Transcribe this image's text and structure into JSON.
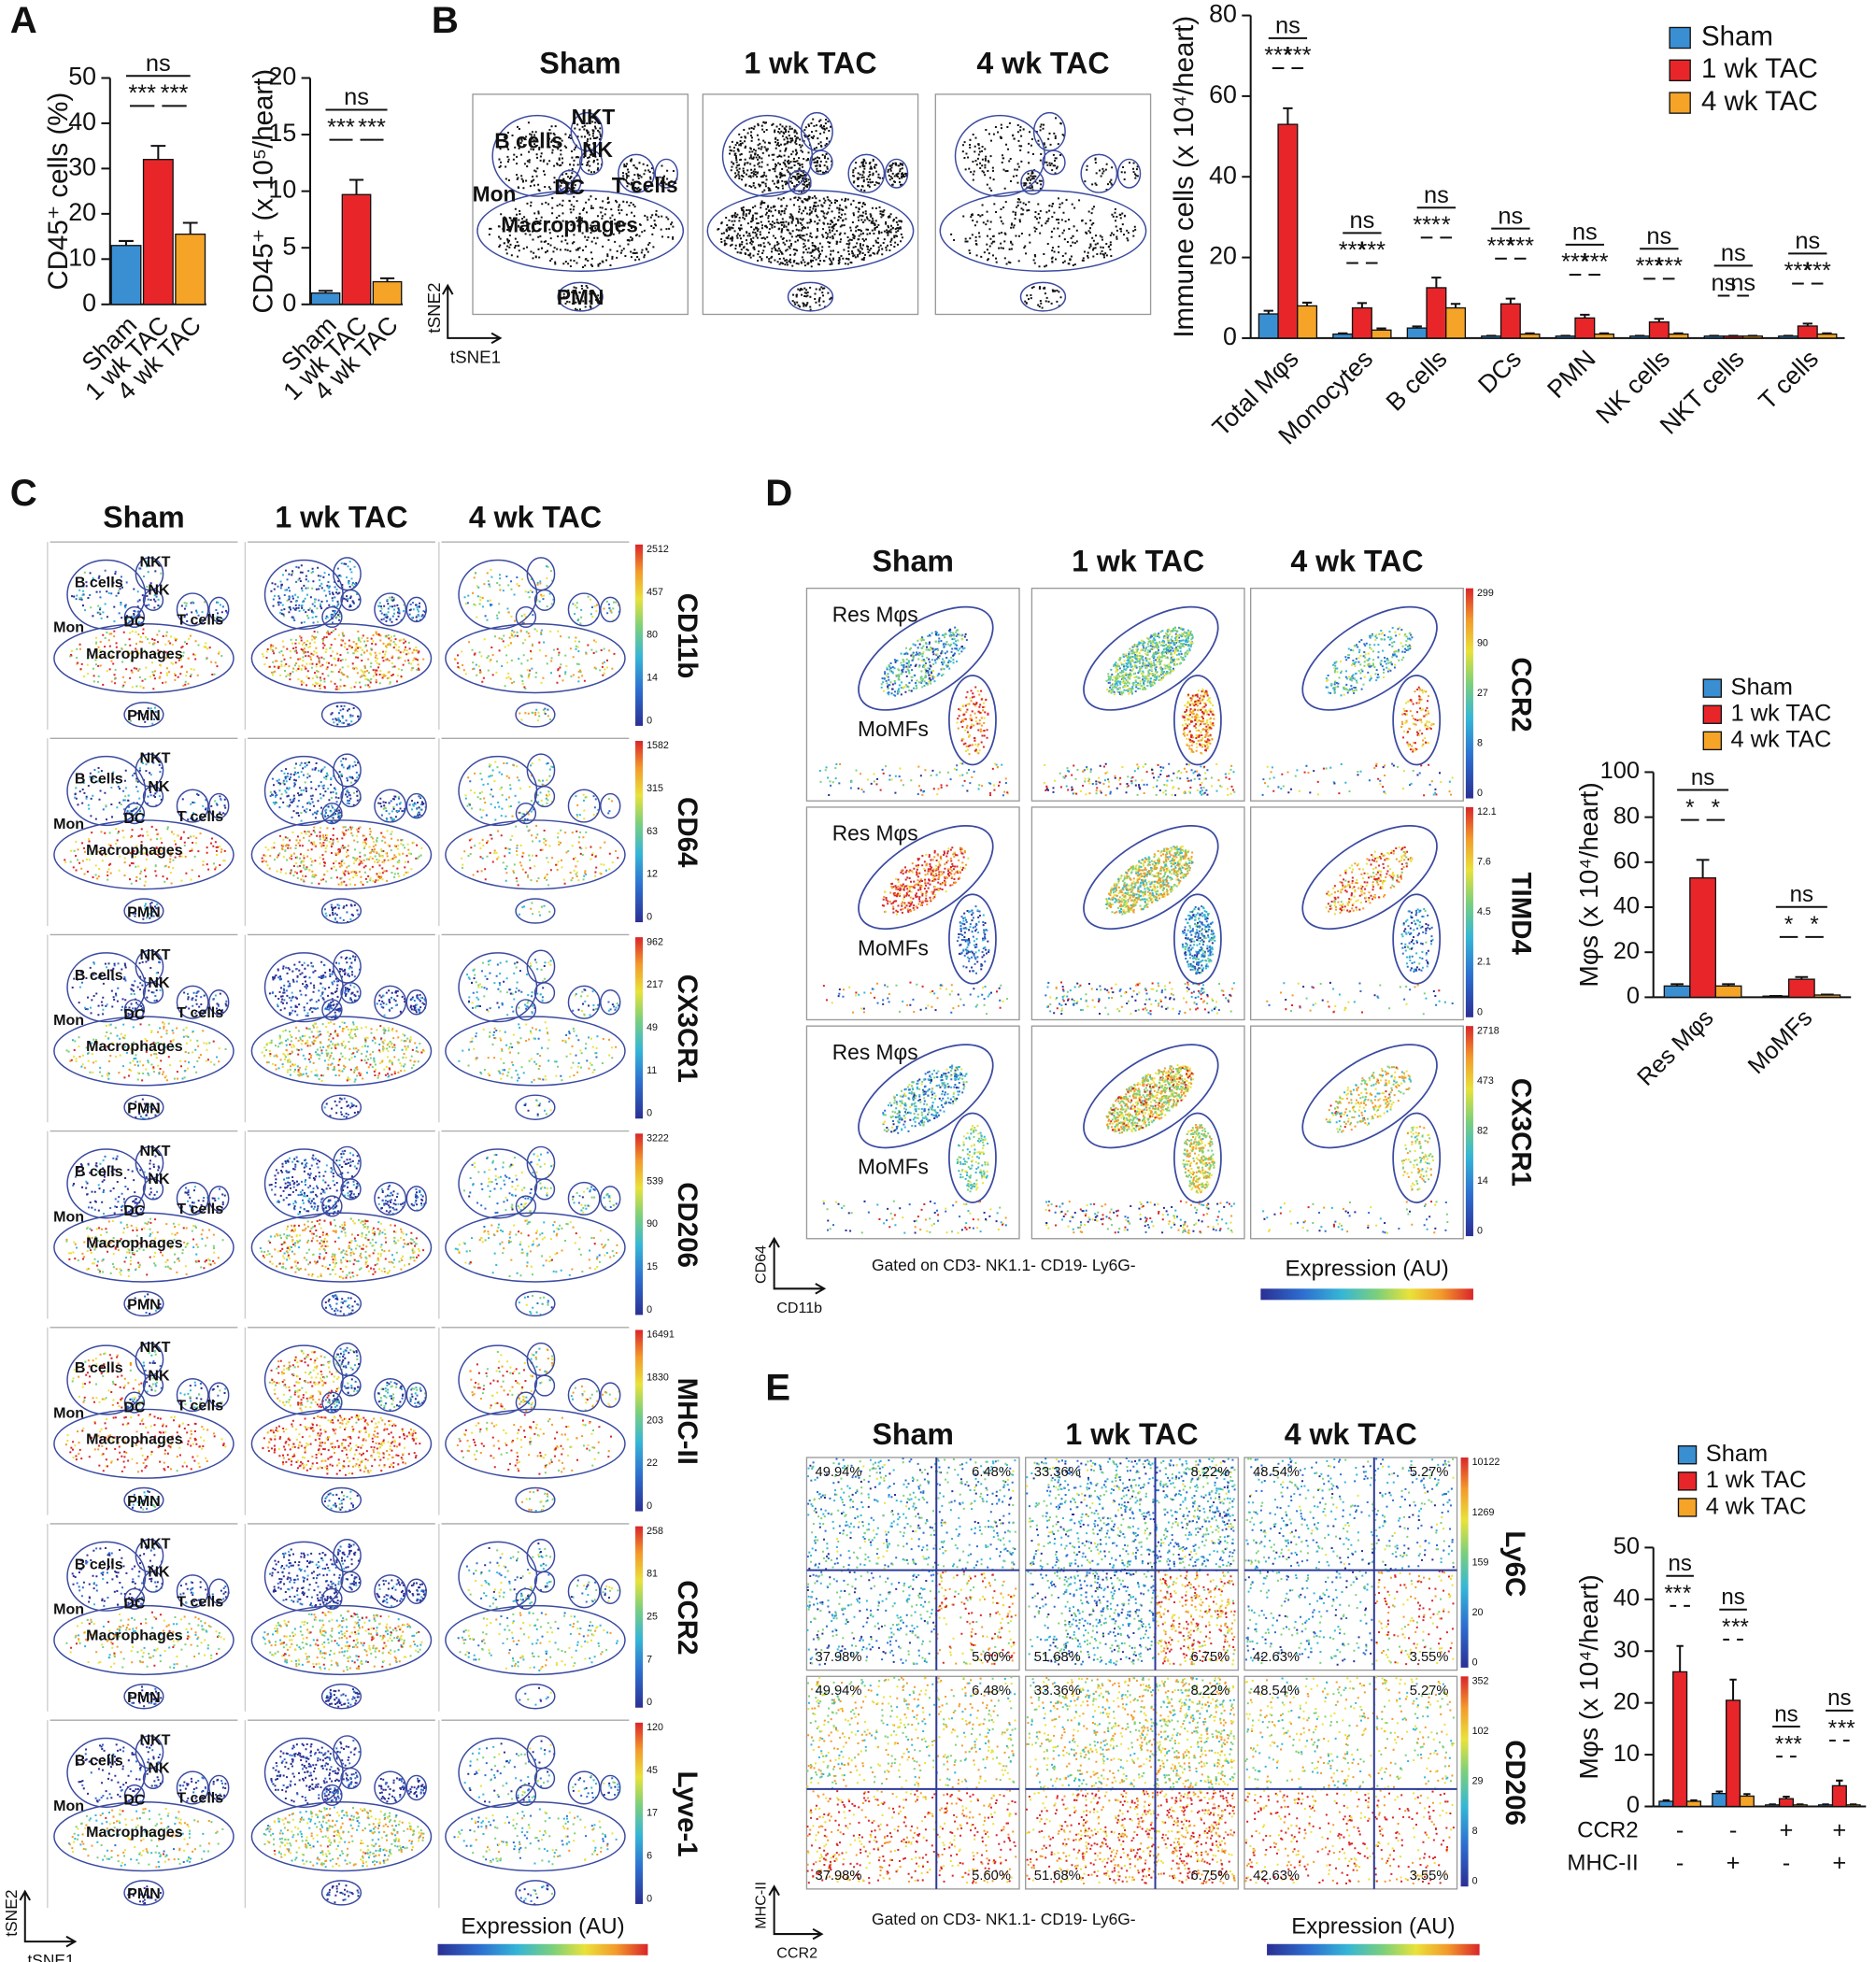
{
  "panel_labels": [
    "A",
    "B",
    "C",
    "D",
    "E"
  ],
  "chart_data": [
    {
      "type": "bar",
      "ylabel": "CD45⁺ cells (%)",
      "categories": [
        "Sham",
        "1 wk TAC",
        "4 wk TAC"
      ],
      "values": [
        13,
        32,
        15.5
      ],
      "errors": [
        1,
        3,
        2.5
      ],
      "colors": [
        "#3a8fd3",
        "#e8262a",
        "#f5a428"
      ],
      "ylim": [
        0,
        50
      ],
      "yticks": [
        0,
        10,
        20,
        30,
        40,
        50
      ],
      "significance": [
        "ns",
        "***",
        "***"
      ]
    },
    {
      "type": "bar",
      "ylabel": "CD45⁺ (x 10⁵/heart)",
      "categories": [
        "Sham",
        "1 wk TAC",
        "4 wk TAC"
      ],
      "values": [
        1,
        9.7,
        2
      ],
      "errors": [
        0.2,
        1.3,
        0.3
      ],
      "colors": [
        "#3a8fd3",
        "#e8262a",
        "#f5a428"
      ],
      "ylim": [
        0,
        20
      ],
      "yticks": [
        0,
        5,
        10,
        15,
        20
      ],
      "significance": [
        "ns",
        "***",
        "***"
      ]
    },
    {
      "type": "bar",
      "ylabel": "Immune cells (x 10⁴/heart)",
      "categories": [
        "Total Mφs",
        "Monocytes",
        "B cells",
        "DCs",
        "PMN",
        "NK cells",
        "NKT cells",
        "T cells"
      ],
      "series": [
        {
          "name": "Sham",
          "color": "#3a8fd3",
          "values": [
            6,
            1,
            2.5,
            0.5,
            0.5,
            0.5,
            0.5,
            0.5
          ],
          "errors": [
            0.8,
            0.2,
            0.4,
            0.1,
            0.1,
            0.1,
            0.1,
            0.1
          ]
        },
        {
          "name": "1 wk TAC",
          "color": "#e8262a",
          "values": [
            53,
            7.5,
            12.5,
            8.5,
            5,
            4,
            0.5,
            3
          ],
          "errors": [
            4,
            1.2,
            2.5,
            1.3,
            0.8,
            0.8,
            0.1,
            0.6
          ]
        },
        {
          "name": "4 wk TAC",
          "color": "#f5a428",
          "values": [
            8,
            2,
            7.5,
            1,
            1,
            1,
            0.5,
            1
          ],
          "errors": [
            0.8,
            0.4,
            1,
            0.2,
            0.2,
            0.2,
            0.1,
            0.2
          ]
        }
      ],
      "ylim": [
        0,
        80
      ],
      "yticks": [
        0,
        20,
        40,
        60,
        80
      ],
      "significance": [
        [
          "ns",
          "***",
          "***"
        ],
        [
          "ns",
          "***",
          "***"
        ],
        [
          "ns",
          "***",
          "*"
        ],
        [
          "ns",
          "***",
          "***"
        ],
        [
          "ns",
          "***",
          "***"
        ],
        [
          "ns",
          "***",
          "***"
        ],
        [
          "ns",
          "ns",
          "ns"
        ],
        [
          "ns",
          "***",
          "***"
        ]
      ]
    },
    {
      "type": "bar",
      "ylabel": "Mφs (x 10⁴/heart)",
      "categories": [
        "Res Mφs",
        "MoMFs"
      ],
      "series": [
        {
          "name": "Sham",
          "color": "#3a8fd3",
          "values": [
            5,
            0.5
          ],
          "errors": [
            0.8,
            0.1
          ]
        },
        {
          "name": "1 wk TAC",
          "color": "#e8262a",
          "values": [
            53,
            8
          ],
          "errors": [
            8,
            1
          ]
        },
        {
          "name": "4 wk TAC",
          "color": "#f5a428",
          "values": [
            5,
            1
          ],
          "errors": [
            0.8,
            0.2
          ]
        }
      ],
      "ylim": [
        0,
        100
      ],
      "yticks": [
        0,
        20,
        40,
        60,
        80,
        100
      ],
      "significance": [
        [
          "ns",
          "*",
          "*"
        ],
        [
          "ns",
          "*",
          "*"
        ]
      ]
    },
    {
      "type": "bar",
      "ylabel": "Mφs (x 10⁴/heart)",
      "category_rows": [
        {
          "name": "CCR2",
          "labels": [
            "-",
            "-",
            "+",
            "+"
          ]
        },
        {
          "name": "MHC-II",
          "labels": [
            "-",
            "+",
            "-",
            "+"
          ]
        }
      ],
      "series": [
        {
          "name": "Sham",
          "color": "#3a8fd3",
          "values": [
            1,
            2.5,
            0.3,
            0.3
          ],
          "errors": [
            0.2,
            0.4,
            0.1,
            0.1
          ]
        },
        {
          "name": "1 wk TAC",
          "color": "#e8262a",
          "values": [
            26,
            20.5,
            1.5,
            4
          ],
          "errors": [
            5,
            4,
            0.4,
            1
          ]
        },
        {
          "name": "4 wk TAC",
          "color": "#f5a428",
          "values": [
            1,
            2,
            0.3,
            0.3
          ],
          "errors": [
            0.2,
            0.4,
            0.1,
            0.1
          ]
        }
      ],
      "ylim": [
        0,
        50
      ],
      "yticks": [
        0,
        10,
        20,
        30,
        40,
        50
      ],
      "significance": [
        [
          "ns",
          "**",
          "*"
        ],
        [
          "ns",
          "*",
          "**"
        ],
        [
          "ns",
          "*",
          "**"
        ],
        [
          "ns",
          "*",
          "**"
        ]
      ]
    }
  ],
  "tsne_b": {
    "columns": [
      "Sham",
      "1 wk TAC",
      "4 wk TAC"
    ],
    "clusters": [
      "Macrophages",
      "B cells",
      "NKT",
      "NK",
      "DC",
      "T cells",
      "PMN",
      "Mon"
    ],
    "x_axis": "tSNE1",
    "y_axis": "tSNE2"
  },
  "tsne_c": {
    "columns": [
      "Sham",
      "1 wk TAC",
      "4 wk TAC"
    ],
    "clusters": [
      "Macrophages",
      "B cells",
      "NKT",
      "NK",
      "DC",
      "T cells",
      "PMN",
      "Mon"
    ],
    "markers": [
      {
        "name": "CD11b",
        "scale": [
          2512,
          457,
          80,
          14,
          0
        ]
      },
      {
        "name": "CD64",
        "scale": [
          1582,
          315,
          63,
          12,
          0
        ]
      },
      {
        "name": "CX3CR1",
        "scale": [
          962,
          217,
          49,
          11,
          0
        ]
      },
      {
        "name": "CD206",
        "scale": [
          3222,
          539,
          90,
          15,
          0
        ]
      },
      {
        "name": "MHC-II",
        "scale": [
          16491,
          1830,
          203,
          22,
          0
        ]
      },
      {
        "name": "CCR2",
        "scale": [
          258,
          81,
          25,
          7,
          0
        ]
      },
      {
        "name": "Lyve-1",
        "scale": [
          120,
          45,
          17,
          6,
          0
        ]
      }
    ],
    "x_axis": "tSNE1",
    "y_axis": "tSNE2",
    "colorbar_label": "Expression (AU)"
  },
  "flow_d": {
    "columns": [
      "Sham",
      "1 wk TAC",
      "4 wk TAC"
    ],
    "gates": [
      "Res Mφs",
      "MoMFs"
    ],
    "markers": [
      {
        "name": "CCR2",
        "scale": [
          299,
          90,
          27,
          8,
          0
        ]
      },
      {
        "name": "TIMD4",
        "scale": [
          12.1,
          7.6,
          4.5,
          2.1,
          0
        ]
      },
      {
        "name": "CX3CR1",
        "scale": [
          2718,
          473,
          82,
          14,
          0
        ]
      }
    ],
    "gating": "Gated on CD3- NK1.1- CD19- Ly6G-",
    "x_axis": "CD11b",
    "y_axis": "CD64",
    "colorbar_label": "Expression (AU)"
  },
  "flow_e": {
    "columns": [
      "Sham",
      "1 wk TAC",
      "4 wk TAC"
    ],
    "quadrants": [
      [
        "49.94%",
        "6.48%",
        "37.98%",
        "5.60%"
      ],
      [
        "33.36%",
        "8.22%",
        "51.68%",
        "6.75%"
      ],
      [
        "48.54%",
        "5.27%",
        "42.63%",
        "3.55%"
      ]
    ],
    "markers": [
      {
        "name": "Ly6C",
        "scale": [
          10122,
          1269,
          159,
          20,
          0
        ]
      },
      {
        "name": "CD206",
        "scale": [
          352,
          102,
          29,
          8,
          0
        ]
      }
    ],
    "gating": "Gated on CD3- NK1.1- CD19- Ly6G-",
    "x_axis": "CCR2",
    "y_axis": "MHC-II",
    "colorbar_label": "Expression (AU)"
  }
}
